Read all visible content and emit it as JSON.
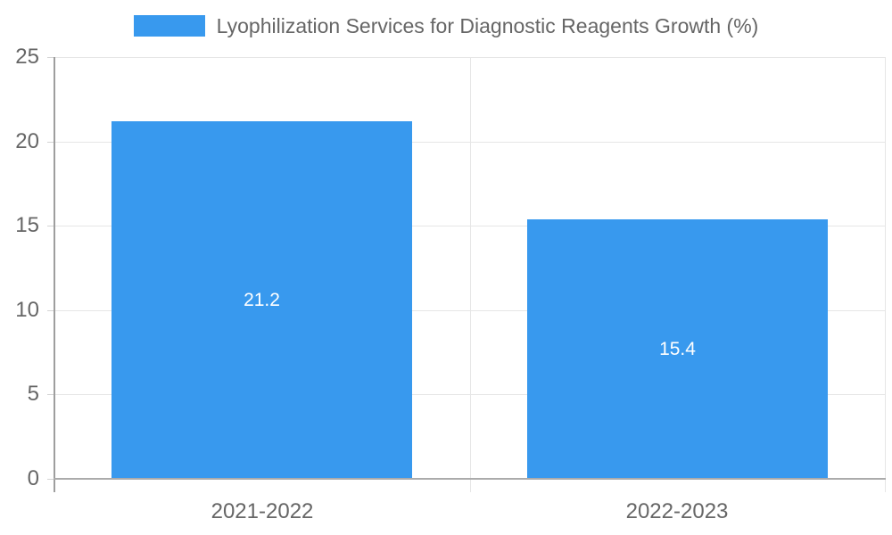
{
  "legend": {
    "label": "Lyophilization Services for Diagnostic Reagents Growth (%)"
  },
  "chart_data": {
    "type": "bar",
    "title": "Lyophilization Services for Diagnostic Reagents Growth (%)",
    "categories": [
      "2021-2022",
      "2022-2023"
    ],
    "values": [
      21.2,
      15.4
    ],
    "value_labels": [
      "21.2",
      "15.4"
    ],
    "xlabel": "",
    "ylabel": "",
    "ylim": [
      0,
      25
    ],
    "yticks": [
      0,
      5,
      10,
      15,
      20,
      25
    ],
    "grid": "on",
    "legend_position": "top-center",
    "colors": {
      "bar": "#3899ee",
      "value_label": "#ffffff",
      "grid": "#e6e6e6",
      "y_axis": "#9e9e9e",
      "baseline": "#ababab",
      "tick": "#d4d4d4",
      "tick_label": "#666666",
      "legend_text": "#666666"
    }
  }
}
